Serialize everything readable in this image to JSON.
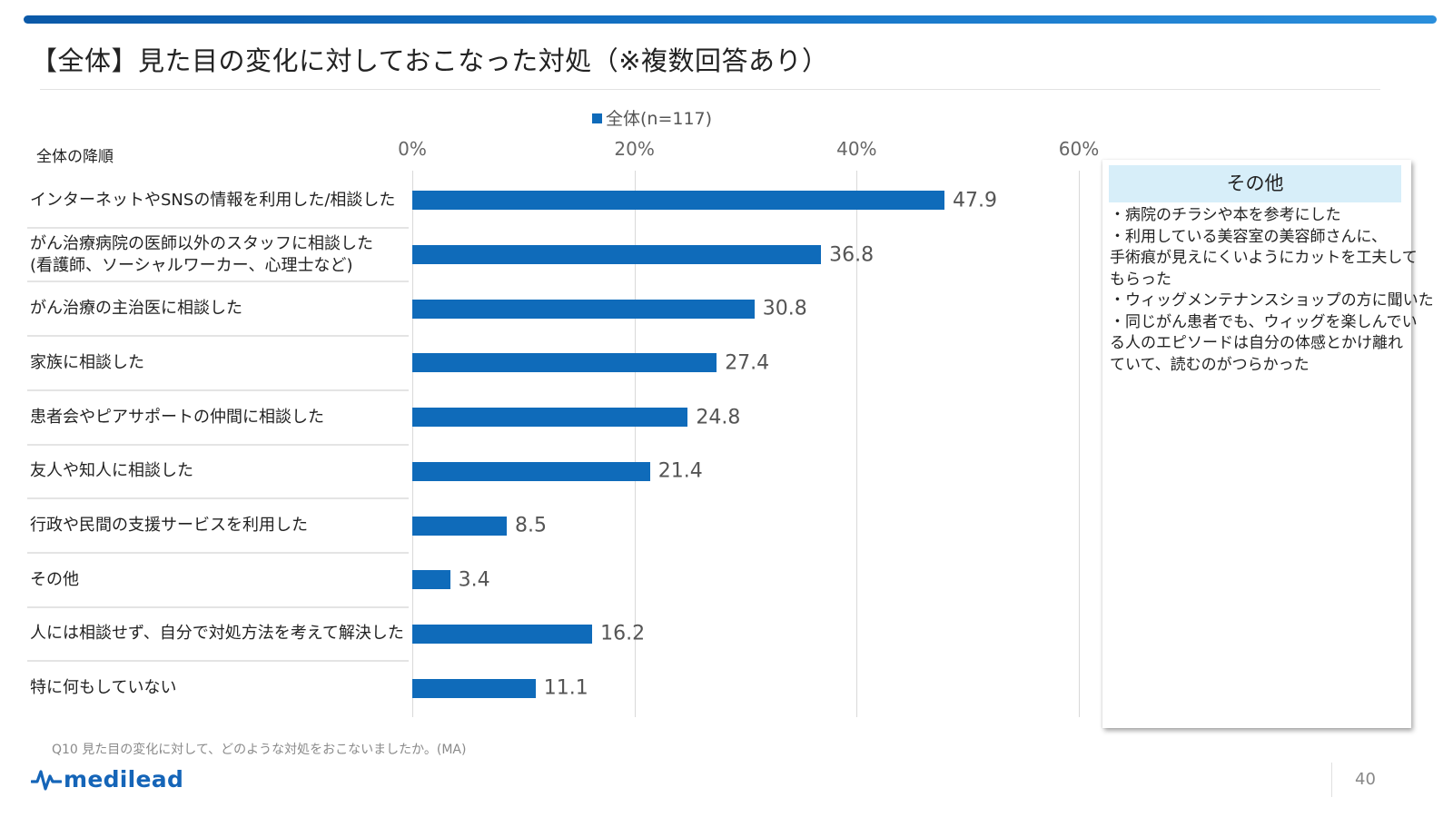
{
  "title": "【全体】見た目の変化に対しておこなった対処（※複数回答あり）",
  "sort_label": "全体の降順",
  "chart_data": {
    "type": "bar",
    "orientation": "horizontal",
    "title": "【全体】見た目の変化に対しておこなった対処（※複数回答あり）",
    "legend": "全体(n=117)",
    "legend_position": "top",
    "categories": [
      [
        "インターネットやSNSの情報を利用した/相談した"
      ],
      [
        "がん治療病院の医師以外のスタッフに相談した",
        "(看護師、ソーシャルワーカー、心理士など)"
      ],
      [
        "がん治療の主治医に相談した"
      ],
      [
        "家族に相談した"
      ],
      [
        "患者会やピアサポートの仲間に相談した"
      ],
      [
        "友人や知人に相談した"
      ],
      [
        "行政や民間の支援サービスを利用した"
      ],
      [
        "その他"
      ],
      [
        "人には相談せず、自分で対処方法を考えて解決した"
      ],
      [
        "特に何もしていない"
      ]
    ],
    "series": [
      {
        "name": "全体(n=117)",
        "values": [
          47.9,
          36.8,
          30.8,
          27.4,
          24.8,
          21.4,
          8.5,
          3.4,
          16.2,
          11.1
        ],
        "color": "#0f6bba"
      }
    ],
    "xlim": [
      0,
      60
    ],
    "xticks": [
      "0%",
      "20%",
      "40%",
      "60%"
    ],
    "grid": true
  },
  "side_panel": {
    "title": "その他",
    "lines": [
      "・病院のチラシや本を参考にした",
      "・利用している美容室の美容師さんに、",
      "手術痕が見えにくいようにカットを工夫して",
      "もらった",
      "・ウィッグメンテナンスショップの方に聞いた",
      "・同じがん患者でも、ウィッグを楽しんでい",
      "る人のエピソードは自分の体感とかけ離れ",
      "ていて、読むのがつらかった"
    ]
  },
  "footnote": "Q10 見た目の変化に対して、どのような対処をおこないましたか。(MA)",
  "logo": {
    "text": "medilead",
    "icon": "pulse-wave-icon"
  },
  "page_number": "40",
  "colors": {
    "accent": "#0f6bba",
    "panel_header": "#d7eef9"
  }
}
